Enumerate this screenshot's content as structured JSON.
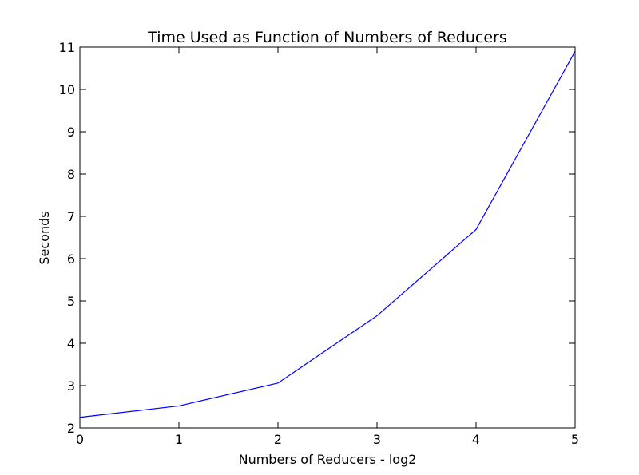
{
  "chart_data": {
    "type": "line",
    "title": "Time Used as Function of Numbers of Reducers",
    "xlabel": "Numbers of Reducers - log2",
    "ylabel": "Seconds",
    "xlim": [
      0,
      5
    ],
    "ylim": [
      2,
      11
    ],
    "xticks": [
      0,
      1,
      2,
      3,
      4,
      5
    ],
    "yticks": [
      2,
      3,
      4,
      5,
      6,
      7,
      8,
      9,
      10,
      11
    ],
    "grid": false,
    "series": [
      {
        "color": "#0000ff",
        "x": [
          0,
          1,
          2,
          3,
          4,
          5
        ],
        "y": [
          2.25,
          2.52,
          3.06,
          4.65,
          6.69,
          10.9
        ]
      }
    ]
  }
}
